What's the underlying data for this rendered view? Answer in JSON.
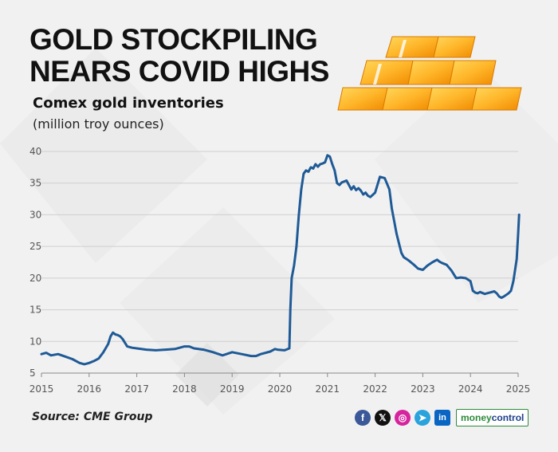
{
  "headline": {
    "line1": "GOLD STOCKPILING",
    "line2": "NEARS COVID HIGHS"
  },
  "subtitle": "Comex gold inventories",
  "unit": "(million troy ounces)",
  "source": "Source: CME Group",
  "brand": {
    "part1": "money",
    "part2": "control"
  },
  "social": [
    {
      "name": "facebook-icon",
      "glyph": "f",
      "color": "#3b5998"
    },
    {
      "name": "x-icon",
      "glyph": "𝕏",
      "color": "#111111"
    },
    {
      "name": "instagram-icon",
      "glyph": "◎",
      "color": "#d6249f"
    },
    {
      "name": "telegram-icon",
      "glyph": "➤",
      "color": "#2aa3dd"
    },
    {
      "name": "linkedin-icon",
      "glyph": "in",
      "color": "#0a66c2"
    }
  ],
  "colors": {
    "line": "#1f5a96",
    "grid": "#cfcfcf",
    "axis": "#888888",
    "tick_text": "#555555",
    "gold_light": "#ffc93c",
    "gold_dark": "#f08a00"
  },
  "chart_data": {
    "type": "line",
    "title": "Comex gold inventories",
    "ylabel": "(million troy ounces)",
    "xlim": [
      2015.0,
      2025.0
    ],
    "ylim": [
      5,
      40
    ],
    "y_ticks": [
      5,
      10,
      15,
      20,
      25,
      30,
      35,
      40
    ],
    "x_ticks": [
      2015,
      2016,
      2017,
      2018,
      2019,
      2020,
      2021,
      2022,
      2023,
      2024,
      2025
    ],
    "grid": "horizontal",
    "legend": "none",
    "series": [
      {
        "x": [
          2015.0,
          2015.1,
          2015.2,
          2015.35,
          2015.5,
          2015.65,
          2015.8,
          2015.9,
          2016.0,
          2016.1,
          2016.2,
          2016.3,
          2016.4,
          2016.45,
          2016.5,
          2016.55,
          2016.6,
          2016.65,
          2016.7,
          2016.8,
          2016.9,
          2017.0,
          2017.2,
          2017.4,
          2017.6,
          2017.8,
          2018.0,
          2018.1,
          2018.2,
          2018.4,
          2018.6,
          2018.8,
          2019.0,
          2019.2,
          2019.4,
          2019.5,
          2019.6,
          2019.8,
          2019.9,
          2019.95,
          2020.1,
          2020.2,
          2020.22,
          2020.25,
          2020.3,
          2020.35,
          2020.4,
          2020.45,
          2020.5,
          2020.55,
          2020.6,
          2020.65,
          2020.7,
          2020.75,
          2020.8,
          2020.85,
          2020.9,
          2020.95,
          2021.0,
          2021.05,
          2021.1,
          2021.15,
          2021.2,
          2021.25,
          2021.3,
          2021.4,
          2021.45,
          2021.5,
          2021.55,
          2021.6,
          2021.65,
          2021.7,
          2021.75,
          2021.8,
          2021.85,
          2021.9,
          2022.0,
          2022.1,
          2022.2,
          2022.3,
          2022.35,
          2022.4,
          2022.45,
          2022.5,
          2022.55,
          2022.6,
          2022.7,
          2022.8,
          2022.9,
          2023.0,
          2023.1,
          2023.2,
          2023.3,
          2023.35,
          2023.4,
          2023.5,
          2023.6,
          2023.7,
          2023.8,
          2023.9,
          2024.0,
          2024.05,
          2024.1,
          2024.15,
          2024.2,
          2024.3,
          2024.4,
          2024.5,
          2024.55,
          2024.6,
          2024.65,
          2024.7,
          2024.8,
          2024.85,
          2024.9,
          2024.95,
          2024.97,
          2025.0,
          2025.02
        ],
        "y": [
          8.0,
          8.2,
          7.8,
          8.0,
          7.6,
          7.2,
          6.6,
          6.4,
          6.6,
          6.9,
          7.3,
          8.3,
          9.6,
          10.8,
          11.4,
          11.1,
          11.0,
          10.8,
          10.4,
          9.2,
          9.0,
          8.9,
          8.7,
          8.6,
          8.7,
          8.8,
          9.2,
          9.2,
          8.9,
          8.7,
          8.3,
          7.8,
          8.3,
          8.0,
          7.7,
          7.7,
          8.0,
          8.4,
          8.8,
          8.7,
          8.6,
          8.9,
          15.0,
          20.0,
          22.0,
          25.0,
          30.0,
          34.0,
          36.5,
          37.0,
          36.8,
          37.5,
          37.3,
          38.0,
          37.6,
          38.0,
          38.1,
          38.3,
          39.4,
          39.2,
          38.0,
          37.0,
          35.0,
          34.7,
          35.1,
          35.4,
          34.7,
          34.0,
          34.5,
          33.9,
          34.2,
          33.8,
          33.2,
          33.5,
          33.0,
          32.8,
          33.5,
          36.0,
          35.8,
          34.0,
          31.0,
          29.0,
          27.0,
          25.5,
          24.0,
          23.3,
          22.8,
          22.2,
          21.5,
          21.3,
          22.0,
          22.5,
          22.9,
          22.6,
          22.4,
          22.1,
          21.2,
          20.0,
          20.1,
          20.0,
          19.5,
          18.0,
          17.7,
          17.6,
          17.8,
          17.5,
          17.7,
          17.9,
          17.6,
          17.1,
          16.9,
          17.1,
          17.6,
          18.0,
          19.5,
          22.0,
          23.0,
          27.0,
          30.0
        ]
      }
    ]
  }
}
